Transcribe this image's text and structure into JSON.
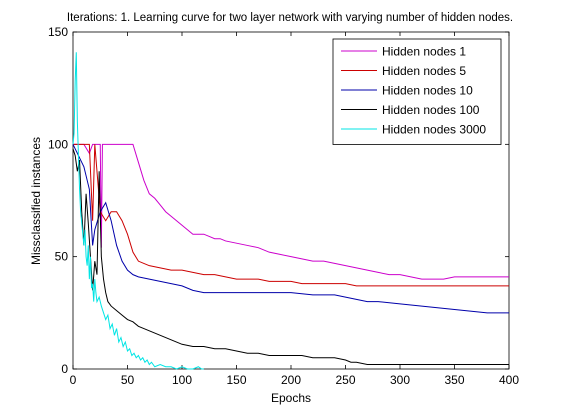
{
  "chart_data": {
    "type": "line",
    "title": "Iterations: 1. Learning curve for two layer network with varying number of hidden nodes.",
    "xlabel": "Epochs",
    "ylabel": "Missclassified instances",
    "xlim": [
      0,
      400
    ],
    "ylim": [
      0,
      150
    ],
    "xticks": [
      0,
      50,
      100,
      150,
      200,
      250,
      300,
      350,
      400
    ],
    "yticks": [
      0,
      50,
      100,
      150
    ],
    "grid": false,
    "legend_position": "top-right",
    "series": [
      {
        "name": "Hidden nodes 1",
        "color": "#cc00cc",
        "points": [
          [
            0,
            100
          ],
          [
            10,
            100
          ],
          [
            15,
            96
          ],
          [
            18,
            100
          ],
          [
            25,
            100
          ],
          [
            26,
            54
          ],
          [
            27,
            100
          ],
          [
            50,
            100
          ],
          [
            55,
            100
          ],
          [
            60,
            92
          ],
          [
            65,
            84
          ],
          [
            70,
            78
          ],
          [
            75,
            76
          ],
          [
            80,
            73
          ],
          [
            85,
            70
          ],
          [
            90,
            68
          ],
          [
            95,
            66
          ],
          [
            100,
            64
          ],
          [
            105,
            62
          ],
          [
            110,
            60
          ],
          [
            120,
            60
          ],
          [
            125,
            59
          ],
          [
            130,
            58
          ],
          [
            135,
            58
          ],
          [
            140,
            57
          ],
          [
            150,
            56
          ],
          [
            160,
            55
          ],
          [
            170,
            54
          ],
          [
            180,
            52
          ],
          [
            190,
            51
          ],
          [
            200,
            50
          ],
          [
            210,
            49
          ],
          [
            220,
            48
          ],
          [
            230,
            48
          ],
          [
            240,
            47
          ],
          [
            250,
            46
          ],
          [
            260,
            45
          ],
          [
            270,
            44
          ],
          [
            280,
            43
          ],
          [
            290,
            42
          ],
          [
            300,
            42
          ],
          [
            310,
            41
          ],
          [
            320,
            40
          ],
          [
            340,
            40
          ],
          [
            350,
            41
          ],
          [
            360,
            41
          ],
          [
            400,
            41
          ]
        ]
      },
      {
        "name": "Hidden nodes 5",
        "color": "#cc0000",
        "points": [
          [
            0,
            100
          ],
          [
            15,
            100
          ],
          [
            18,
            66
          ],
          [
            20,
            100
          ],
          [
            25,
            70
          ],
          [
            30,
            66
          ],
          [
            35,
            70
          ],
          [
            40,
            70
          ],
          [
            45,
            66
          ],
          [
            50,
            60
          ],
          [
            55,
            52
          ],
          [
            60,
            48
          ],
          [
            65,
            47
          ],
          [
            70,
            46
          ],
          [
            80,
            45
          ],
          [
            90,
            44
          ],
          [
            100,
            44
          ],
          [
            110,
            43
          ],
          [
            120,
            42
          ],
          [
            130,
            42
          ],
          [
            140,
            41
          ],
          [
            150,
            40
          ],
          [
            160,
            40
          ],
          [
            170,
            40
          ],
          [
            180,
            39
          ],
          [
            200,
            39
          ],
          [
            210,
            38
          ],
          [
            230,
            38
          ],
          [
            250,
            38
          ],
          [
            260,
            37
          ],
          [
            300,
            37
          ],
          [
            350,
            37
          ],
          [
            400,
            37
          ]
        ]
      },
      {
        "name": "Hidden nodes 10",
        "color": "#0000aa",
        "points": [
          [
            0,
            100
          ],
          [
            10,
            90
          ],
          [
            15,
            80
          ],
          [
            18,
            55
          ],
          [
            20,
            62
          ],
          [
            25,
            70
          ],
          [
            30,
            74
          ],
          [
            35,
            66
          ],
          [
            40,
            55
          ],
          [
            45,
            48
          ],
          [
            50,
            44
          ],
          [
            55,
            42
          ],
          [
            60,
            41
          ],
          [
            70,
            40
          ],
          [
            80,
            39
          ],
          [
            90,
            38
          ],
          [
            100,
            37
          ],
          [
            110,
            35
          ],
          [
            120,
            34
          ],
          [
            130,
            34
          ],
          [
            150,
            34
          ],
          [
            170,
            34
          ],
          [
            200,
            34
          ],
          [
            220,
            33
          ],
          [
            240,
            33
          ],
          [
            250,
            32
          ],
          [
            260,
            31
          ],
          [
            270,
            30
          ],
          [
            280,
            30
          ],
          [
            300,
            29
          ],
          [
            320,
            28
          ],
          [
            340,
            27
          ],
          [
            360,
            26
          ],
          [
            380,
            25
          ],
          [
            400,
            25
          ]
        ]
      },
      {
        "name": "Hidden nodes 100",
        "color": "#000000",
        "points": [
          [
            0,
            98
          ],
          [
            2,
            95
          ],
          [
            4,
            88
          ],
          [
            6,
            93
          ],
          [
            8,
            70
          ],
          [
            10,
            55
          ],
          [
            12,
            78
          ],
          [
            14,
            65
          ],
          [
            16,
            50
          ],
          [
            18,
            35
          ],
          [
            20,
            48
          ],
          [
            22,
            42
          ],
          [
            24,
            88
          ],
          [
            26,
            50
          ],
          [
            28,
            40
          ],
          [
            30,
            34
          ],
          [
            32,
            30
          ],
          [
            35,
            28
          ],
          [
            40,
            26
          ],
          [
            45,
            24
          ],
          [
            50,
            22
          ],
          [
            55,
            21
          ],
          [
            60,
            19
          ],
          [
            65,
            18
          ],
          [
            70,
            17
          ],
          [
            75,
            16
          ],
          [
            80,
            15
          ],
          [
            85,
            14
          ],
          [
            90,
            13
          ],
          [
            95,
            12
          ],
          [
            100,
            11
          ],
          [
            110,
            10
          ],
          [
            120,
            10
          ],
          [
            130,
            9
          ],
          [
            140,
            9
          ],
          [
            150,
            8
          ],
          [
            160,
            7
          ],
          [
            170,
            7
          ],
          [
            180,
            6
          ],
          [
            190,
            6
          ],
          [
            200,
            6
          ],
          [
            210,
            6
          ],
          [
            220,
            5
          ],
          [
            230,
            5
          ],
          [
            240,
            5
          ],
          [
            250,
            4
          ],
          [
            255,
            3
          ],
          [
            260,
            3
          ],
          [
            270,
            2
          ],
          [
            300,
            2
          ],
          [
            350,
            2
          ],
          [
            400,
            2
          ]
        ]
      },
      {
        "name": "Hidden nodes 3000",
        "color": "#00e5e5",
        "points": [
          [
            0,
            100
          ],
          [
            1,
            105
          ],
          [
            2,
            128
          ],
          [
            3,
            141
          ],
          [
            4,
            110
          ],
          [
            5,
            95
          ],
          [
            6,
            80
          ],
          [
            7,
            70
          ],
          [
            8,
            65
          ],
          [
            9,
            60
          ],
          [
            10,
            55
          ],
          [
            11,
            62
          ],
          [
            12,
            50
          ],
          [
            13,
            46
          ],
          [
            14,
            55
          ],
          [
            15,
            40
          ],
          [
            16,
            50
          ],
          [
            17,
            36
          ],
          [
            18,
            38
          ],
          [
            19,
            30
          ],
          [
            20,
            40
          ],
          [
            21,
            34
          ],
          [
            22,
            30
          ],
          [
            24,
            32
          ],
          [
            26,
            28
          ],
          [
            28,
            25
          ],
          [
            30,
            22
          ],
          [
            32,
            24
          ],
          [
            34,
            18
          ],
          [
            36,
            20
          ],
          [
            38,
            15
          ],
          [
            40,
            18
          ],
          [
            42,
            12
          ],
          [
            44,
            14
          ],
          [
            46,
            10
          ],
          [
            48,
            12
          ],
          [
            50,
            8
          ],
          [
            52,
            9
          ],
          [
            54,
            6
          ],
          [
            56,
            7
          ],
          [
            58,
            5
          ],
          [
            60,
            6
          ],
          [
            62,
            4
          ],
          [
            64,
            5
          ],
          [
            66,
            3
          ],
          [
            68,
            4
          ],
          [
            70,
            2
          ],
          [
            72,
            3
          ],
          [
            75,
            1
          ],
          [
            80,
            2
          ],
          [
            85,
            1
          ],
          [
            90,
            1
          ],
          [
            95,
            0
          ],
          [
            100,
            1
          ],
          [
            105,
            0
          ],
          [
            110,
            0
          ],
          [
            115,
            1
          ],
          [
            118,
            0
          ],
          [
            120,
            0
          ]
        ]
      }
    ]
  }
}
